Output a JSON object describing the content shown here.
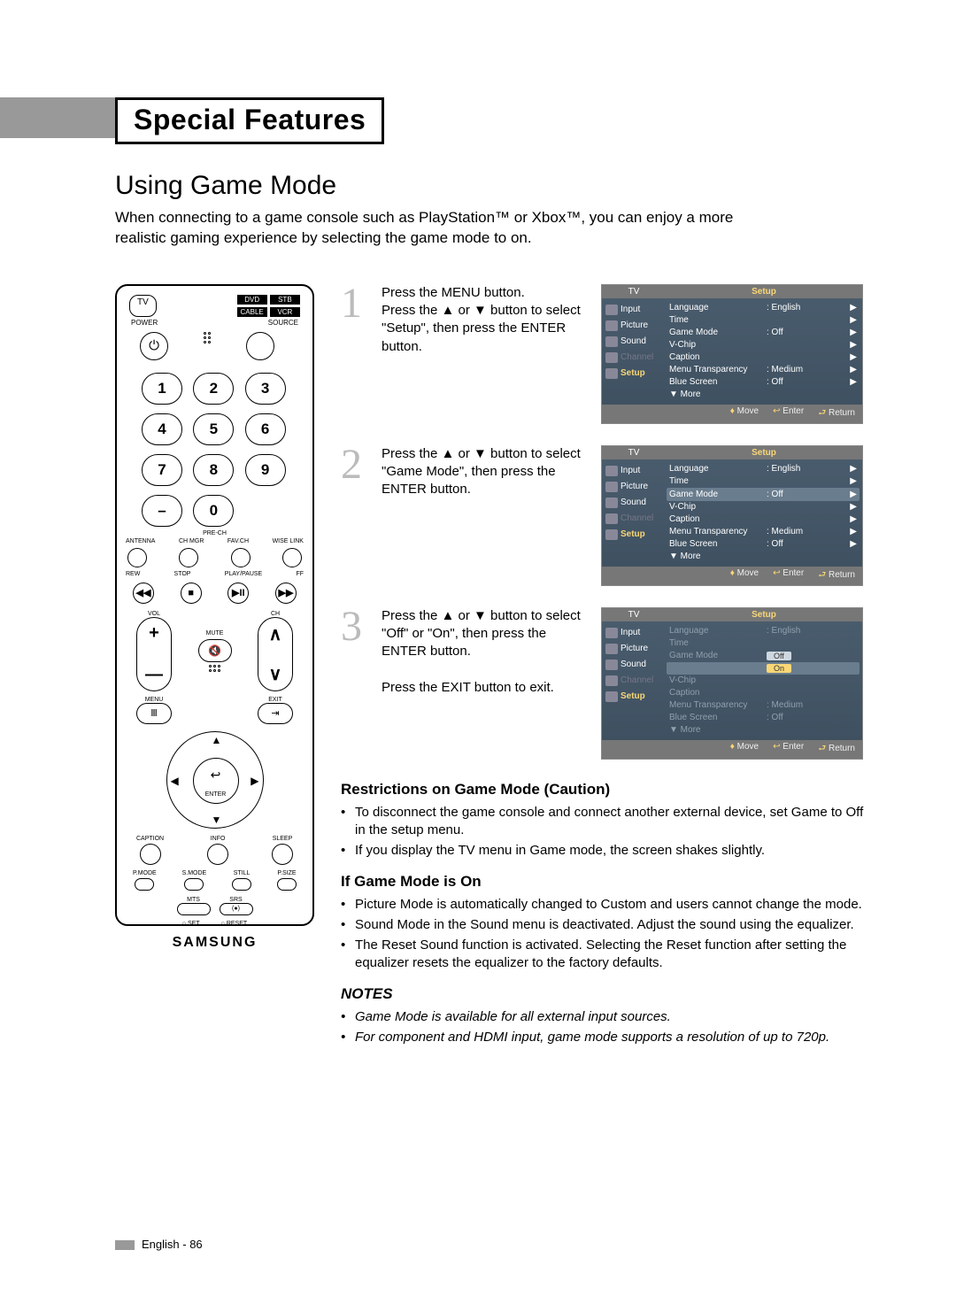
{
  "header": {
    "title": "Special Features"
  },
  "section": {
    "title": "Using Game Mode"
  },
  "intro": "When connecting to a game console such as PlayStation™ or Xbox™, you can enjoy a more realistic gaming experience by selecting the game mode to on.",
  "remote": {
    "tv": "TV",
    "modes": [
      "DVD",
      "STB",
      "CABLE",
      "VCR"
    ],
    "power": "POWER",
    "source": "SOURCE",
    "nums": [
      "1",
      "2",
      "3",
      "4",
      "5",
      "6",
      "7",
      "8",
      "9",
      "–",
      "0"
    ],
    "prech": "PRE-CH",
    "bottom_row": [
      "ANTENNA",
      "CH MGR",
      "FAV.CH",
      "WISE LINK"
    ],
    "transport_lbl": [
      "REW",
      "STOP",
      "PLAY/PAUSE",
      "FF"
    ],
    "transport": [
      "◀◀",
      "■",
      "▶II",
      "▶▶"
    ],
    "vol": "VOL",
    "ch": "CH",
    "mute": "MUTE",
    "menu": "MENU",
    "exit": "EXIT",
    "enter": "ENTER",
    "row3": [
      "CAPTION",
      "INFO",
      "SLEEP"
    ],
    "row4": [
      "P.MODE",
      "S.MODE",
      "STILL",
      "P.SIZE"
    ],
    "row5": [
      "MTS",
      "SRS"
    ],
    "setreset": [
      "SET",
      "RESET"
    ],
    "brand": "SAMSUNG"
  },
  "steps": [
    {
      "num": "1",
      "text": "Press the MENU button.\nPress the ▲ or ▼ button to select \"Setup\", then press the ENTER button.",
      "highlight": "none"
    },
    {
      "num": "2",
      "text": "Press the ▲ or ▼ button to select \"Game Mode\", then press the ENTER button.",
      "highlight": "gamemode"
    },
    {
      "num": "3",
      "text": "Press the ▲ or ▼ button to select \"Off\" or \"On\", then press the ENTER button.\n\nPress the EXIT button to exit.",
      "highlight": "options"
    }
  ],
  "osd": {
    "tab_left": "TV",
    "tab_right": "Setup",
    "side": [
      {
        "t": "Input"
      },
      {
        "t": "Picture"
      },
      {
        "t": "Sound"
      },
      {
        "t": "Channel",
        "dim": true
      },
      {
        "t": "Setup",
        "act": true
      }
    ],
    "rows": [
      {
        "k": "Language",
        "v": ": English",
        "arr": true
      },
      {
        "k": "Time",
        "v": "",
        "arr": true
      },
      {
        "k": "Game Mode",
        "v": ": Off",
        "arr": true,
        "key": "gamemode"
      },
      {
        "k": "V-Chip",
        "v": "",
        "arr": true
      },
      {
        "k": "Caption",
        "v": "",
        "arr": true
      },
      {
        "k": "Menu Transparency",
        "v": ": Medium",
        "arr": true
      },
      {
        "k": "Blue Screen",
        "v": ": Off",
        "arr": true
      },
      {
        "k": "▼ More",
        "v": "",
        "arr": false
      }
    ],
    "options": [
      "Off",
      "On"
    ],
    "foot": [
      {
        "i": "♦",
        "t": "Move"
      },
      {
        "i": "↩",
        "t": "Enter"
      },
      {
        "i": "⮐",
        "t": "Return"
      }
    ]
  },
  "restrictions": {
    "title": "Restrictions on Game Mode (Caution)",
    "items": [
      "To disconnect the game console and connect another external device, set Game to Off in the setup menu.",
      "If you display the TV menu in Game mode, the screen shakes slightly."
    ]
  },
  "ifon": {
    "title": "If Game Mode is On",
    "items": [
      "Picture Mode is automatically changed to Custom and users  cannot change the mode.",
      "Sound Mode in the Sound menu is deactivated. Adjust the sound using the equalizer.",
      "The Reset Sound function is activated. Selecting the Reset function after setting the equalizer resets the equalizer to the factory defaults."
    ]
  },
  "notes": {
    "title": "NOTES",
    "items": [
      "Game Mode is available for all external input sources.",
      "For component and HDMI input, game mode supports a resolution of up to 720p."
    ]
  },
  "footer": "English - 86"
}
